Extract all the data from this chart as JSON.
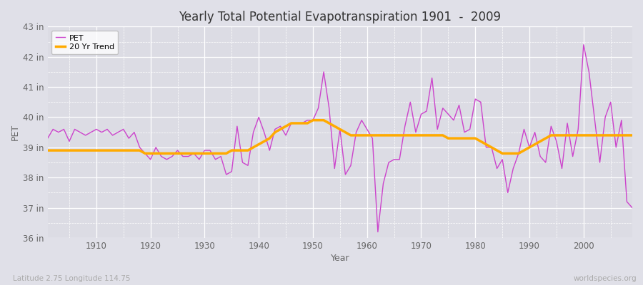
{
  "title": "Yearly Total Potential Evapotranspiration 1901  -  2009",
  "xlabel": "Year",
  "ylabel": "PET",
  "footnote_left": "Latitude 2.75 Longitude 114.75",
  "footnote_right": "worldspecies.org",
  "pet_color": "#cc44cc",
  "trend_color": "#ffaa00",
  "bg_color": "#e0e0e8",
  "plot_bg_color": "#dcdce4",
  "ylim": [
    36,
    43
  ],
  "yticks": [
    36,
    37,
    38,
    39,
    40,
    41,
    42,
    43
  ],
  "ytick_labels": [
    "36 in",
    "37 in",
    "38 in",
    "39 in",
    "40 in",
    "41 in",
    "42 in",
    "43 in"
  ],
  "xlim": [
    1901,
    2009
  ],
  "years": [
    1901,
    1902,
    1903,
    1904,
    1905,
    1906,
    1907,
    1908,
    1909,
    1910,
    1911,
    1912,
    1913,
    1914,
    1915,
    1916,
    1917,
    1918,
    1919,
    1920,
    1921,
    1922,
    1923,
    1924,
    1925,
    1926,
    1927,
    1928,
    1929,
    1930,
    1931,
    1932,
    1933,
    1934,
    1935,
    1936,
    1937,
    1938,
    1939,
    1940,
    1941,
    1942,
    1943,
    1944,
    1945,
    1946,
    1947,
    1948,
    1949,
    1950,
    1951,
    1952,
    1953,
    1954,
    1955,
    1956,
    1957,
    1958,
    1959,
    1960,
    1961,
    1962,
    1963,
    1964,
    1965,
    1966,
    1967,
    1968,
    1969,
    1970,
    1971,
    1972,
    1973,
    1974,
    1975,
    1976,
    1977,
    1978,
    1979,
    1980,
    1981,
    1982,
    1983,
    1984,
    1985,
    1986,
    1987,
    1988,
    1989,
    1990,
    1991,
    1992,
    1993,
    1994,
    1995,
    1996,
    1997,
    1998,
    1999,
    2000,
    2001,
    2002,
    2003,
    2004,
    2005,
    2006,
    2007,
    2008,
    2009
  ],
  "pet_values": [
    39.3,
    39.6,
    39.5,
    39.6,
    39.2,
    39.6,
    39.5,
    39.4,
    39.5,
    39.6,
    39.5,
    39.6,
    39.4,
    39.5,
    39.6,
    39.3,
    39.5,
    39.0,
    38.8,
    38.6,
    39.0,
    38.7,
    38.6,
    38.7,
    38.9,
    38.7,
    38.7,
    38.8,
    38.6,
    38.9,
    38.9,
    38.6,
    38.7,
    38.1,
    38.2,
    39.7,
    38.5,
    38.4,
    39.5,
    40.0,
    39.5,
    38.9,
    39.6,
    39.7,
    39.4,
    39.8,
    39.8,
    39.8,
    39.9,
    39.9,
    40.3,
    41.5,
    40.3,
    38.3,
    39.6,
    38.1,
    38.4,
    39.5,
    39.9,
    39.6,
    39.3,
    36.2,
    37.8,
    38.5,
    38.6,
    38.6,
    39.7,
    40.5,
    39.5,
    40.1,
    40.2,
    41.3,
    39.6,
    40.3,
    40.1,
    39.9,
    40.4,
    39.5,
    39.6,
    40.6,
    40.5,
    39.0,
    39.0,
    38.3,
    38.6,
    37.5,
    38.3,
    38.8,
    39.6,
    39.0,
    39.5,
    38.7,
    38.5,
    39.7,
    39.2,
    38.3,
    39.8,
    38.7,
    39.6,
    42.4,
    41.5,
    40.0,
    38.5,
    40.0,
    40.5,
    39.0,
    39.9,
    37.2,
    37.0
  ],
  "trend_values": [
    38.9,
    38.9,
    38.9,
    38.9,
    38.9,
    38.9,
    38.9,
    38.9,
    38.9,
    38.9,
    38.9,
    38.9,
    38.9,
    38.9,
    38.9,
    38.9,
    38.9,
    38.9,
    38.8,
    38.8,
    38.8,
    38.8,
    38.8,
    38.8,
    38.8,
    38.8,
    38.8,
    38.8,
    38.8,
    38.8,
    38.8,
    38.8,
    38.8,
    38.8,
    38.9,
    38.9,
    38.9,
    38.9,
    39.0,
    39.1,
    39.2,
    39.3,
    39.5,
    39.6,
    39.7,
    39.8,
    39.8,
    39.8,
    39.8,
    39.9,
    39.9,
    39.9,
    39.8,
    39.7,
    39.6,
    39.5,
    39.4,
    39.4,
    39.4,
    39.4,
    39.4,
    39.4,
    39.4,
    39.4,
    39.4,
    39.4,
    39.4,
    39.4,
    39.4,
    39.4,
    39.4,
    39.4,
    39.4,
    39.4,
    39.3,
    39.3,
    39.3,
    39.3,
    39.3,
    39.3,
    39.2,
    39.1,
    39.0,
    38.9,
    38.8,
    38.8,
    38.8,
    38.8,
    38.9,
    39.0,
    39.1,
    39.2,
    39.3,
    39.4,
    39.4,
    39.4,
    39.4,
    39.4,
    39.4,
    39.4,
    39.4,
    39.4,
    39.4,
    39.4,
    39.4,
    39.4,
    39.4,
    39.4,
    39.4
  ]
}
